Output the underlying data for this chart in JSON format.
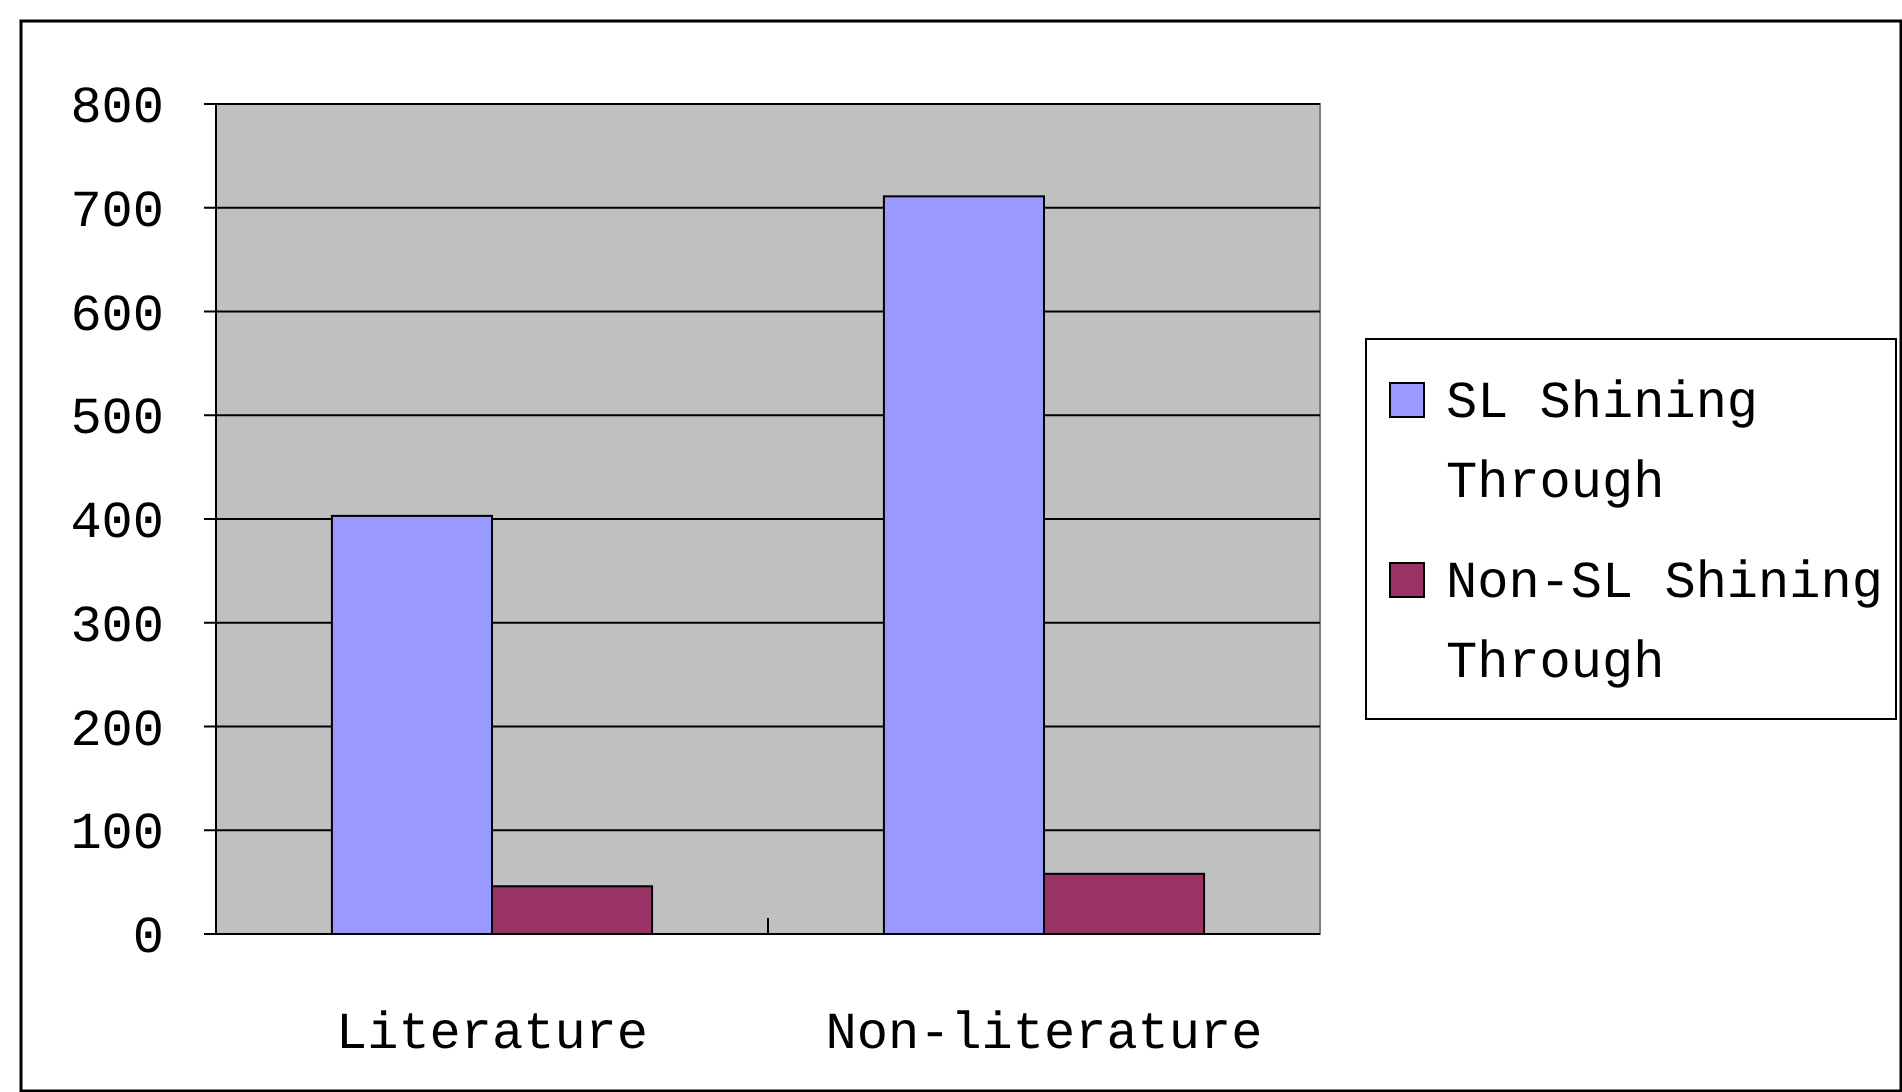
{
  "chart_data": {
    "type": "bar",
    "categories": [
      "Literature",
      "Non-literature"
    ],
    "series": [
      {
        "name": "SL Shining Through",
        "color": "#9999ff",
        "values": [
          403,
          711
        ]
      },
      {
        "name": "Non-SL Shining Through",
        "color": "#993366",
        "values": [
          46,
          58
        ]
      }
    ],
    "ylim": [
      0,
      800
    ],
    "yticks": [
      0,
      100,
      200,
      300,
      400,
      500,
      600,
      700,
      800
    ],
    "grid": "y",
    "legend": "right"
  }
}
